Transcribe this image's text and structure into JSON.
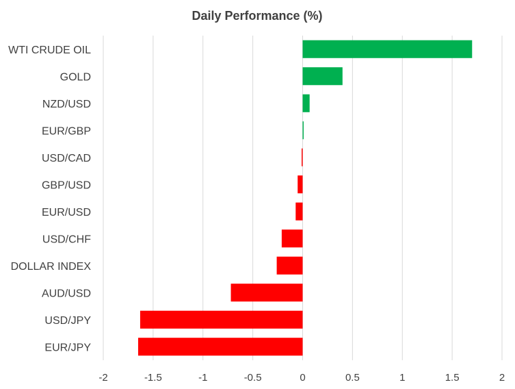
{
  "chart_data": {
    "type": "bar",
    "orientation": "horizontal",
    "title": "Daily Performance (%)",
    "xlabel": "",
    "ylabel": "",
    "categories": [
      "WTI CRUDE OIL",
      "GOLD",
      "NZD/USD",
      "EUR/GBP",
      "USD/CAD",
      "GBP/USD",
      "EUR/USD",
      "USD/CHF",
      "DOLLAR INDEX",
      "AUD/USD",
      "USD/JPY",
      "EUR/JPY"
    ],
    "values": [
      1.7,
      0.4,
      0.07,
      0.01,
      -0.01,
      -0.05,
      -0.07,
      -0.21,
      -0.26,
      -0.72,
      -1.63,
      -1.65
    ],
    "xlim": [
      -2,
      2
    ],
    "xticks": [
      "-2",
      "-1.5",
      "-1",
      "-0.5",
      "0",
      "0.5",
      "1",
      "1.5",
      "2"
    ],
    "grid": true,
    "legend": "none",
    "colors": {
      "positive": "#00b050",
      "negative": "#ff0000"
    }
  }
}
